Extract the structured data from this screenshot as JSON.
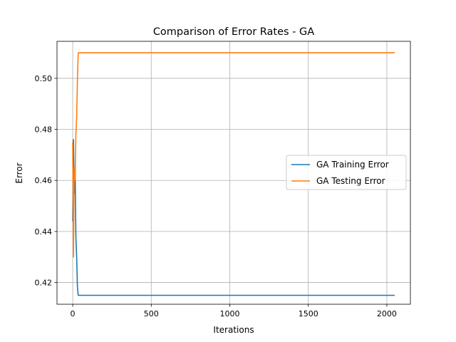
{
  "chart_data": {
    "type": "line",
    "title": "Comparison of Error Rates - GA",
    "xlabel": "Iterations",
    "ylabel": "Error",
    "xlim": [
      -100,
      2150
    ],
    "ylim": [
      0.4115,
      0.5145
    ],
    "xticks": [
      0,
      500,
      1000,
      1500,
      2000
    ],
    "yticks": [
      0.42,
      0.44,
      0.46,
      0.48,
      0.5
    ],
    "xtick_labels": [
      "0",
      "500",
      "1000",
      "1500",
      "2000"
    ],
    "ytick_labels": [
      "0.42",
      "0.44",
      "0.46",
      "0.48",
      "0.50"
    ],
    "grid": true,
    "legend_position": "center-right",
    "series": [
      {
        "name": "GA Training Error",
        "color": "#1f77b4",
        "x": [
          0,
          5,
          10,
          15,
          20,
          25,
          30,
          35,
          40,
          2050
        ],
        "y": [
          0.444,
          0.476,
          0.455,
          0.465,
          0.438,
          0.43,
          0.418,
          0.415,
          0.415,
          0.415
        ]
      },
      {
        "name": "GA Testing Error",
        "color": "#ff7f0e",
        "x": [
          0,
          5,
          10,
          15,
          20,
          25,
          30,
          35,
          40,
          2050
        ],
        "y": [
          0.475,
          0.43,
          0.465,
          0.46,
          0.478,
          0.485,
          0.5,
          0.51,
          0.51,
          0.51
        ]
      }
    ]
  }
}
